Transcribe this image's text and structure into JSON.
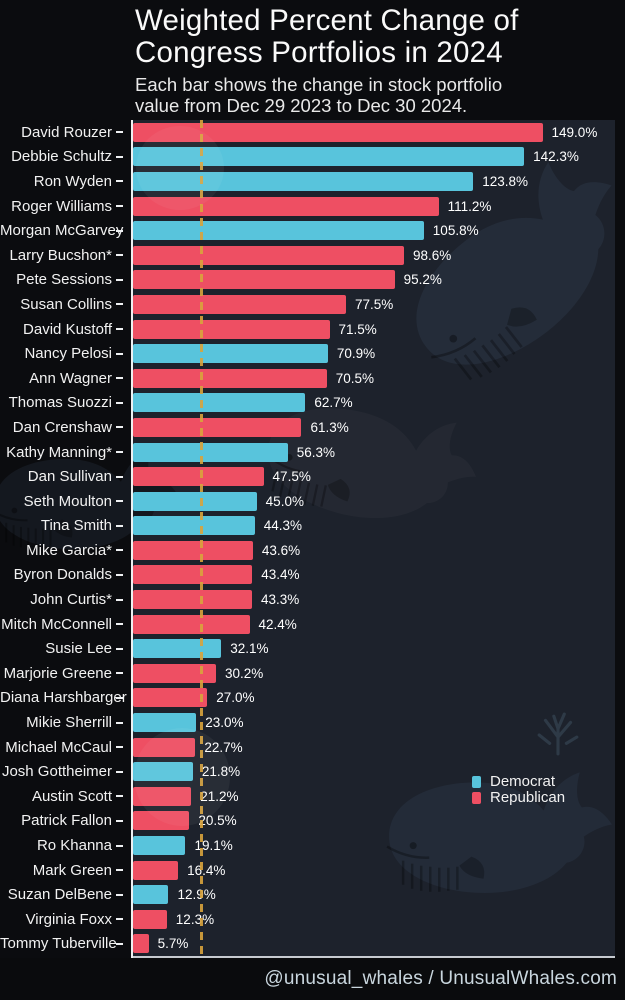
{
  "title": {
    "line1": "Weighted Percent Change of",
    "line2": "Congress Portfolios in 2024"
  },
  "subtitle": {
    "line1": "Each bar shows the change in stock portfolio",
    "line2": "value from Dec 29 2023 to Dec 30 2024."
  },
  "legend": [
    {
      "label": "Democrat",
      "color": "#58c4dc"
    },
    {
      "label": "Republican",
      "color": "#ee4f63"
    }
  ],
  "footer": {
    "handle": "@unusual_whales / UnusualWhales.com"
  },
  "colors": {
    "background": "#0b0c0f",
    "plot_background": "#1d222c",
    "democrat": "#58c4dc",
    "republican": "#ee4f63",
    "benchmark_dash": "#d9a33c",
    "axis": "#eef0f2",
    "value_text": "#ffffff"
  },
  "chart_data": {
    "type": "bar",
    "orientation": "horizontal",
    "title": "Weighted Percent Change of Congress Portfolios in 2024",
    "xlabel": "",
    "ylabel": "",
    "xlim": [
      0,
      179
    ],
    "value_suffix": "%",
    "grid": false,
    "benchmark_x": 25,
    "legend_position": "lower right",
    "bars": [
      {
        "name": "David Rouzer",
        "value": 149.0,
        "party": "Republican"
      },
      {
        "name": "Debbie Schultz",
        "value": 142.3,
        "party": "Democrat"
      },
      {
        "name": "Ron Wyden",
        "value": 123.8,
        "party": "Democrat"
      },
      {
        "name": "Roger Williams",
        "value": 111.2,
        "party": "Republican"
      },
      {
        "name": "Morgan McGarvey",
        "value": 105.8,
        "party": "Democrat"
      },
      {
        "name": "Larry Bucshon*",
        "value": 98.6,
        "party": "Republican"
      },
      {
        "name": "Pete Sessions",
        "value": 95.2,
        "party": "Republican"
      },
      {
        "name": "Susan Collins",
        "value": 77.5,
        "party": "Republican"
      },
      {
        "name": "David Kustoff",
        "value": 71.5,
        "party": "Republican"
      },
      {
        "name": "Nancy Pelosi",
        "value": 70.9,
        "party": "Democrat"
      },
      {
        "name": "Ann Wagner",
        "value": 70.5,
        "party": "Republican"
      },
      {
        "name": "Thomas Suozzi",
        "value": 62.7,
        "party": "Democrat"
      },
      {
        "name": "Dan Crenshaw",
        "value": 61.3,
        "party": "Republican"
      },
      {
        "name": "Kathy Manning*",
        "value": 56.3,
        "party": "Democrat"
      },
      {
        "name": "Dan Sullivan",
        "value": 47.5,
        "party": "Republican"
      },
      {
        "name": "Seth Moulton",
        "value": 45.0,
        "party": "Democrat"
      },
      {
        "name": "Tina Smith",
        "value": 44.3,
        "party": "Democrat"
      },
      {
        "name": "Mike Garcia*",
        "value": 43.6,
        "party": "Republican"
      },
      {
        "name": "Byron Donalds",
        "value": 43.4,
        "party": "Republican"
      },
      {
        "name": "John Curtis*",
        "value": 43.3,
        "party": "Republican"
      },
      {
        "name": "Mitch McConnell",
        "value": 42.4,
        "party": "Republican"
      },
      {
        "name": "Susie Lee",
        "value": 32.1,
        "party": "Democrat"
      },
      {
        "name": "Marjorie Greene",
        "value": 30.2,
        "party": "Republican"
      },
      {
        "name": "Diana Harshbarger",
        "value": 27.0,
        "party": "Republican"
      },
      {
        "name": "Mikie Sherrill",
        "value": 23.0,
        "party": "Democrat"
      },
      {
        "name": "Michael McCaul",
        "value": 22.7,
        "party": "Republican"
      },
      {
        "name": "Josh Gottheimer",
        "value": 21.8,
        "party": "Democrat"
      },
      {
        "name": "Austin Scott",
        "value": 21.2,
        "party": "Republican"
      },
      {
        "name": "Patrick Fallon",
        "value": 20.5,
        "party": "Republican"
      },
      {
        "name": "Ro Khanna",
        "value": 19.1,
        "party": "Democrat"
      },
      {
        "name": "Mark Green",
        "value": 16.4,
        "party": "Republican"
      },
      {
        "name": "Suzan DelBene",
        "value": 12.9,
        "party": "Democrat"
      },
      {
        "name": "Virginia Foxx",
        "value": 12.3,
        "party": "Republican"
      },
      {
        "name": "Tommy Tuberville",
        "value": 5.7,
        "party": "Republican"
      }
    ]
  }
}
